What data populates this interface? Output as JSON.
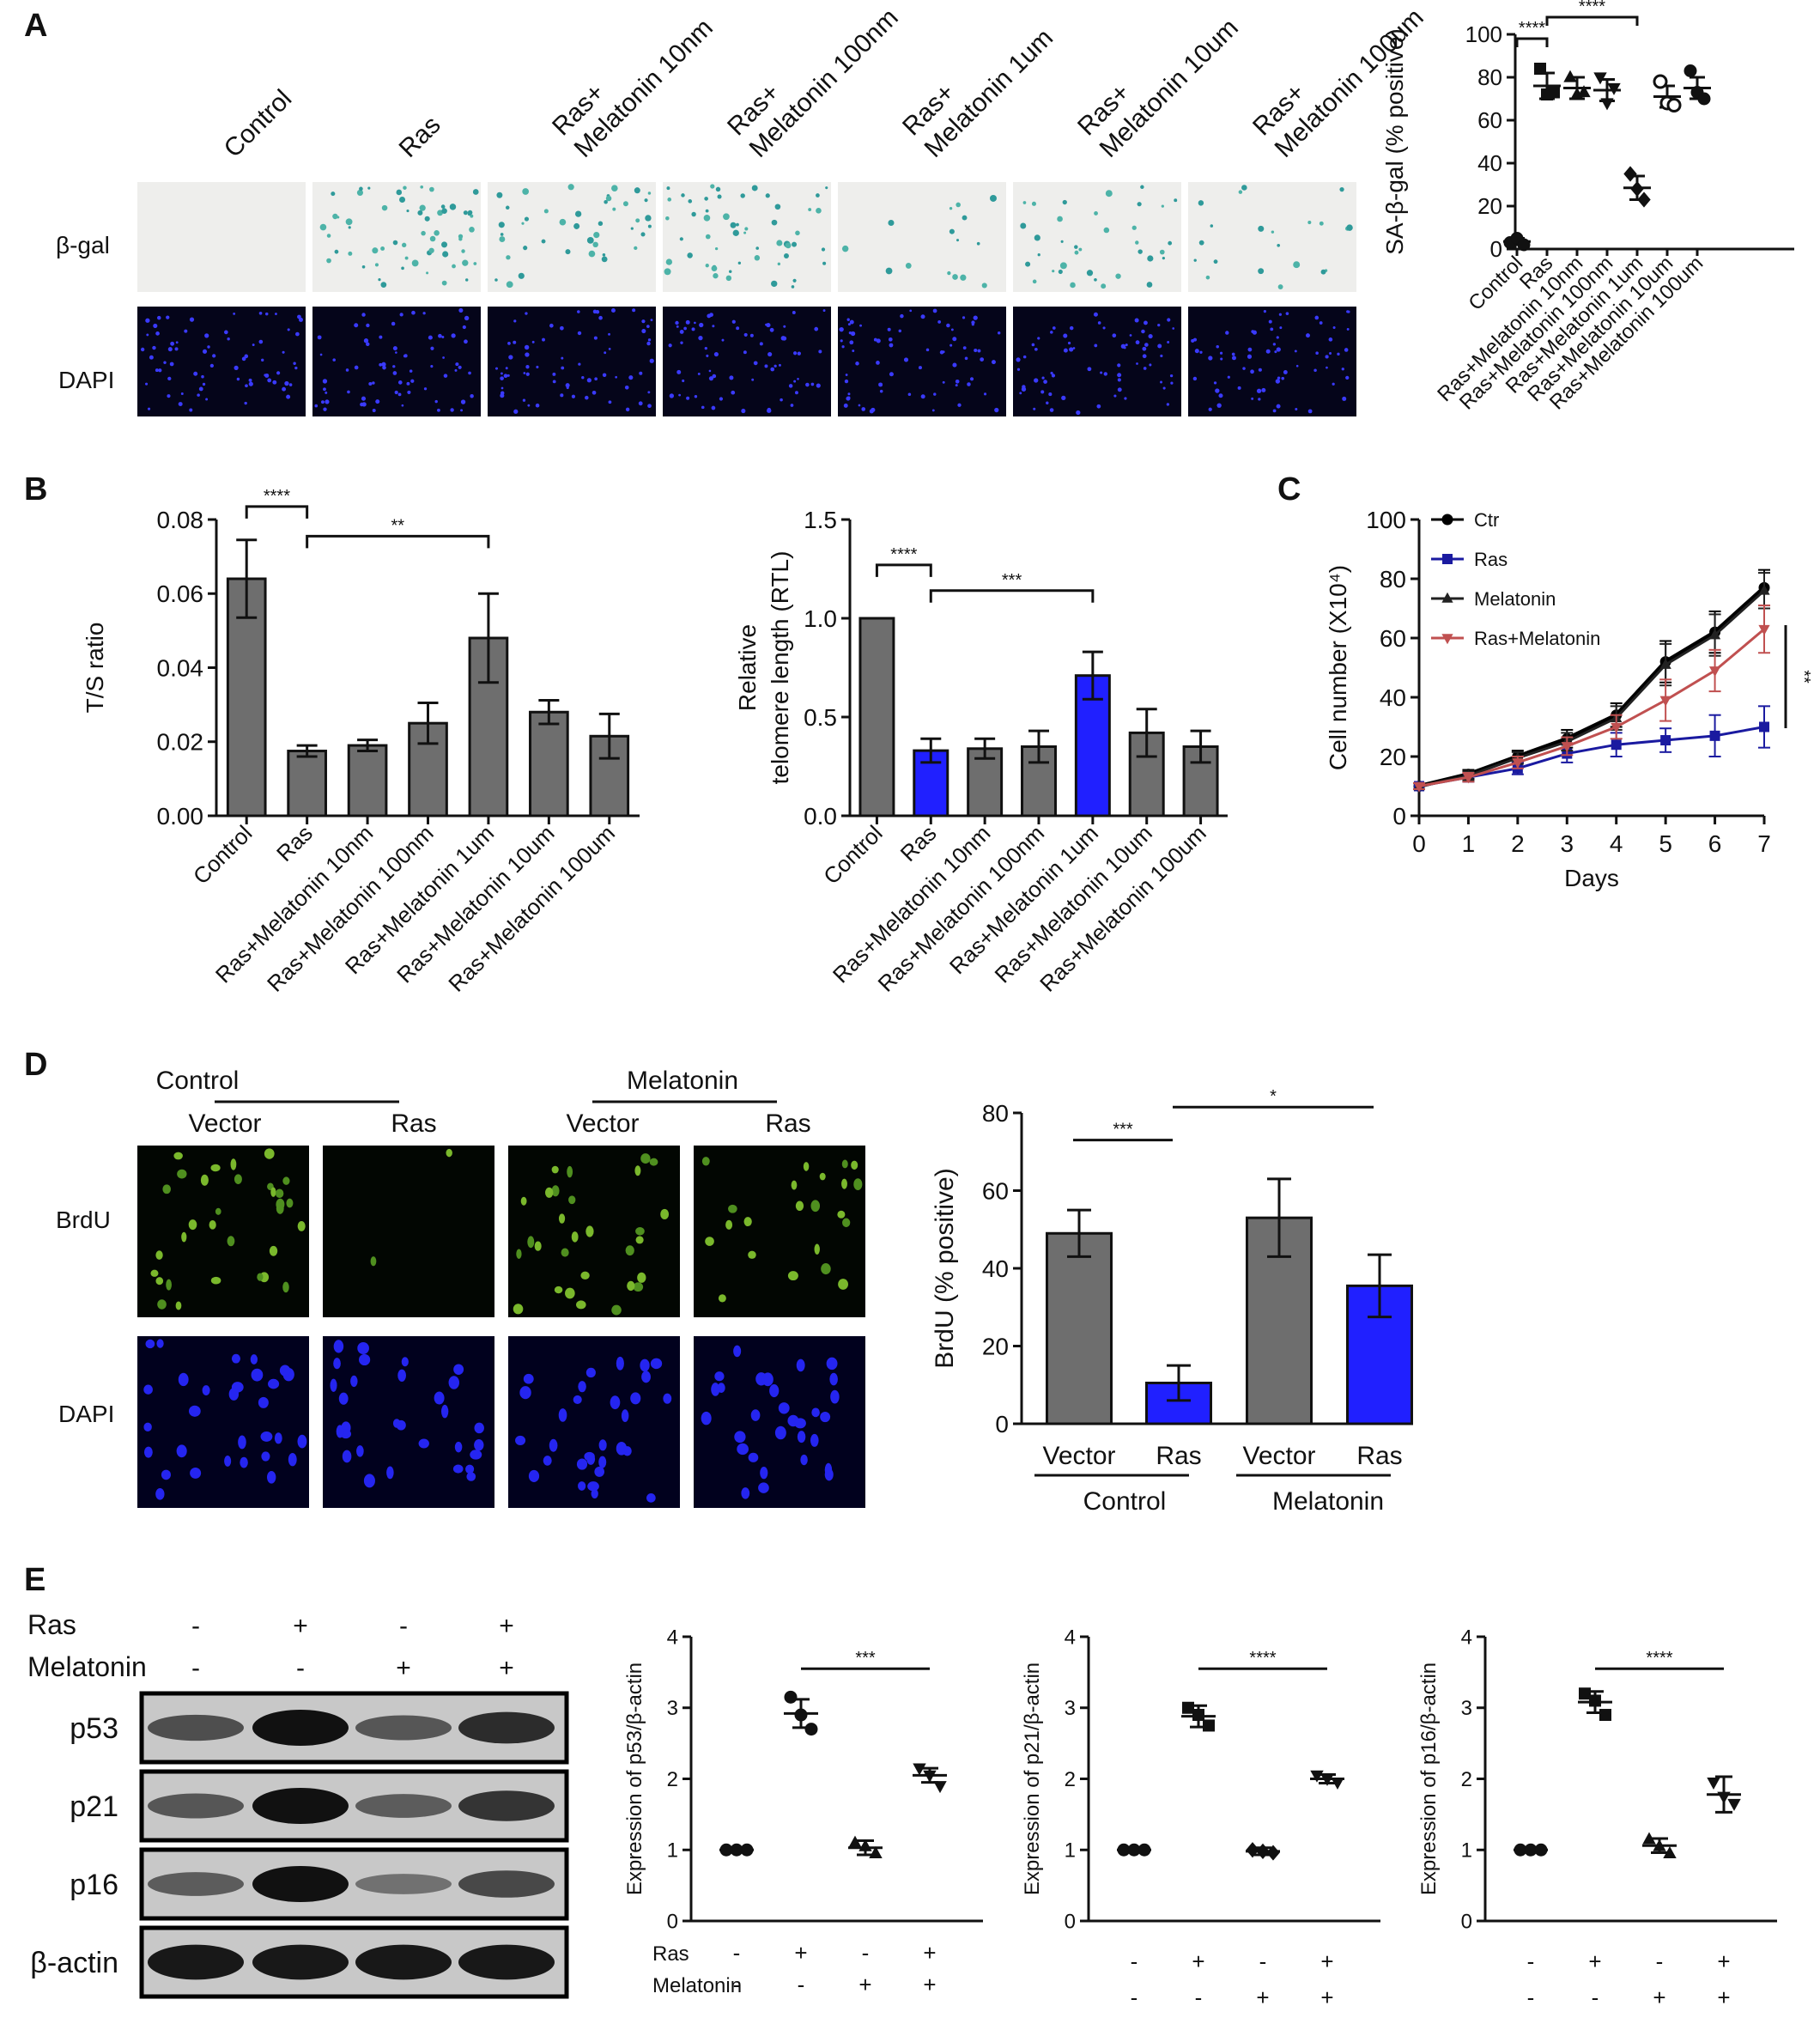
{
  "panels": [
    {
      "letter": "A"
    },
    {
      "letter": "B"
    },
    {
      "letter": "C"
    },
    {
      "letter": "D"
    },
    {
      "letter": "E"
    }
  ],
  "panelA": {
    "col_labels": [
      {
        "lines": [
          "Control"
        ]
      },
      {
        "lines": [
          "Ras"
        ]
      },
      {
        "lines": [
          "Ras+",
          "Melatonin 10nm"
        ]
      },
      {
        "lines": [
          "Ras+",
          "Melatonin 100nm"
        ]
      },
      {
        "lines": [
          "Ras+",
          "Melatonin 1um"
        ]
      },
      {
        "lines": [
          "Ras+",
          "Melatonin 10um"
        ]
      },
      {
        "lines": [
          "Ras+",
          "Melatonin 100um"
        ]
      }
    ],
    "row_labels": [
      "β-gal",
      "DAPI"
    ],
    "bgal_density": [
      0,
      1.0,
      0.7,
      0.9,
      0.25,
      0.6,
      0.35
    ]
  },
  "panelD": {
    "group_labels": [
      "Control",
      "Melatonin"
    ],
    "col_labels": [
      "Vector",
      "Ras",
      "Vector",
      "Ras"
    ],
    "row_labels": [
      "BrdU",
      "DAPI"
    ],
    "brdu_density": [
      1.0,
      0.05,
      0.9,
      0.7
    ]
  },
  "panelE_blot": {
    "treatment_rows": [
      {
        "label": "Ras",
        "signs": [
          "-",
          "+",
          "-",
          "+"
        ]
      },
      {
        "label": "Melatonin",
        "signs": [
          "-",
          "-",
          "+",
          "+"
        ]
      }
    ],
    "bands": [
      {
        "label": "p53",
        "intensity": [
          0.55,
          1.0,
          0.5,
          0.8
        ]
      },
      {
        "label": "p21",
        "intensity": [
          0.5,
          1.0,
          0.45,
          0.75
        ]
      },
      {
        "label": "p16",
        "intensity": [
          0.45,
          1.0,
          0.3,
          0.6
        ]
      },
      {
        "label": "β-actin",
        "intensity": [
          0.95,
          0.95,
          0.95,
          0.95
        ]
      }
    ]
  },
  "colors": {
    "gray_bar": "#6e6e6e",
    "blue_bar": "#2020ff",
    "ctr": "#000000",
    "ras": "#1a1aa0",
    "melatonin": "#222222",
    "ras_melatonin": "#c05050"
  },
  "chart_data": [
    {
      "id": "A",
      "type": "scatter",
      "ylabel": "SA-β-gal (% positive)",
      "categories": [
        "Control",
        "Ras",
        "Ras+Melatonin 10nm",
        "Ras+Melatonin 100nm",
        "Ras+Melatonin 1um",
        "Ras+Melatonin 10um",
        "Ras+Melatonin 100um"
      ],
      "points": [
        [
          3,
          5,
          2
        ],
        [
          84,
          72,
          73
        ],
        [
          80,
          72,
          73
        ],
        [
          80,
          68,
          75
        ],
        [
          35,
          28,
          23
        ],
        [
          78,
          68,
          67
        ],
        [
          83,
          73,
          70
        ]
      ],
      "means": [
        3.5,
        76,
        75,
        74,
        28.5,
        71,
        75
      ],
      "sd": [
        1.5,
        6,
        5,
        5,
        5.5,
        5,
        5
      ],
      "markers": [
        "circle",
        "square",
        "triangle",
        "triangle-down",
        "diamond",
        "circle-open",
        "circle"
      ],
      "yticks": [
        0,
        20,
        40,
        60,
        80,
        100
      ],
      "ylim": [
        0,
        100
      ],
      "significance": [
        {
          "from": 0,
          "to": 1,
          "label": "****",
          "level": 98
        },
        {
          "from": 1,
          "to": 4,
          "label": "****",
          "level": 108
        }
      ]
    },
    {
      "id": "B1",
      "type": "bar",
      "ylabel": "T/S ratio",
      "categories": [
        "Control",
        "Ras",
        "Ras+Melatonin 10nm",
        "Ras+Melatonin 100nm",
        "Ras+Melatonin 1um",
        "Ras+Melatonin 10um",
        "Ras+Melatonin 100um"
      ],
      "values": [
        0.064,
        0.0175,
        0.019,
        0.025,
        0.048,
        0.028,
        0.0215
      ],
      "err": [
        0.0105,
        0.0015,
        0.0015,
        0.0055,
        0.012,
        0.0032,
        0.006
      ],
      "colors": [
        "gray",
        "gray",
        "gray",
        "gray",
        "gray",
        "gray",
        "gray"
      ],
      "yticks": [
        "0.00",
        "0.02",
        "0.04",
        "0.06",
        "0.08"
      ],
      "ylim": [
        0,
        0.08
      ],
      "significance": [
        {
          "from": 0,
          "to": 1,
          "label": "****",
          "level": 0.0835
        },
        {
          "from": 1,
          "to": 4,
          "label": "**",
          "level": 0.0755
        }
      ]
    },
    {
      "id": "B2",
      "type": "bar",
      "ylabel": "Relative telomere length (RTL)",
      "ylabel_lines": [
        "Relative",
        "telomere length (RTL)"
      ],
      "categories": [
        "Control",
        "Ras",
        "Ras+Melatonin 10nm",
        "Ras+Melatonin 100nm",
        "Ras+Melatonin 1um",
        "Ras+Melatonin 10um",
        "Ras+Melatonin 100um"
      ],
      "values": [
        1.0,
        0.33,
        0.34,
        0.35,
        0.71,
        0.42,
        0.35
      ],
      "err": [
        0.0,
        0.06,
        0.05,
        0.08,
        0.12,
        0.12,
        0.08
      ],
      "colors": [
        "gray",
        "blue",
        "gray",
        "gray",
        "blue",
        "gray",
        "gray"
      ],
      "yticks": [
        "0.0",
        "0.5",
        "1.0",
        "1.5"
      ],
      "ylim": [
        0,
        1.5
      ],
      "significance": [
        {
          "from": 0,
          "to": 1,
          "label": "****",
          "level": 1.27
        },
        {
          "from": 1,
          "to": 4,
          "label": "***",
          "level": 1.14
        }
      ]
    },
    {
      "id": "C",
      "type": "line",
      "xlabel": "Days",
      "ylabel": "Cell number (X10⁴)",
      "x": [
        0,
        1,
        2,
        3,
        4,
        5,
        6,
        7
      ],
      "series": [
        {
          "name": "Ctr",
          "marker": "circle",
          "values": [
            10,
            14,
            20,
            26,
            34,
            52,
            62,
            77
          ],
          "err": [
            1,
            1.5,
            2,
            3,
            4,
            7,
            7,
            6
          ]
        },
        {
          "name": "Ras",
          "marker": "square",
          "values": [
            10,
            13,
            16,
            21,
            24,
            25.5,
            27,
            30
          ],
          "err": [
            1,
            1.5,
            2,
            3,
            4,
            4,
            7,
            7
          ]
        },
        {
          "name": "Melatonin",
          "marker": "triangle",
          "values": [
            10,
            13.5,
            19.5,
            25,
            33,
            51,
            61,
            76
          ],
          "err": [
            1,
            1.5,
            2,
            3,
            4,
            7,
            7,
            6
          ]
        },
        {
          "name": "Ras+Melatonin",
          "marker": "triangle-down",
          "values": [
            10,
            13,
            18,
            23.5,
            30,
            39,
            49,
            63
          ],
          "err": [
            1,
            1.5,
            2,
            3,
            4,
            7,
            7,
            8
          ]
        }
      ],
      "xticks": [
        0,
        1,
        2,
        3,
        4,
        5,
        6,
        7
      ],
      "yticks": [
        0,
        20,
        40,
        60,
        80,
        100
      ],
      "xlim": [
        0,
        7
      ],
      "ylim": [
        0,
        100
      ],
      "legend": "top-left",
      "significance": [
        {
          "label": "**"
        }
      ]
    },
    {
      "id": "D",
      "type": "bar",
      "ylabel": "BrdU (% positive)",
      "categories": [
        "Vector",
        "Ras",
        "Vector",
        "Ras"
      ],
      "groups": [
        "Control",
        "Melatonin"
      ],
      "values": [
        49,
        10.5,
        53,
        35.5
      ],
      "err": [
        6,
        4.5,
        10,
        8
      ],
      "colors": [
        "gray",
        "blue",
        "gray",
        "blue"
      ],
      "yticks": [
        0,
        20,
        40,
        60,
        80
      ],
      "ylim": [
        0,
        80
      ],
      "significance": [
        {
          "from": 0,
          "to": 1,
          "label": "***",
          "level": 73
        },
        {
          "from": 1,
          "to": 3,
          "label": "*",
          "level": 81.5
        }
      ]
    },
    {
      "id": "E1",
      "type": "scatter",
      "ylabel": "Expression of p53/β-actin",
      "row_labels": [
        "Ras",
        "Melatonin"
      ],
      "treatments": [
        [
          "-",
          "+",
          "-",
          "+"
        ],
        [
          "-",
          "-",
          "+",
          "+"
        ]
      ],
      "points": [
        [
          1,
          1,
          1
        ],
        [
          3.15,
          2.9,
          2.7
        ],
        [
          1.1,
          1.05,
          0.95
        ],
        [
          2.15,
          2.05,
          1.9
        ]
      ],
      "means": [
        1,
        2.92,
        1.03,
        2.05
      ],
      "sd": [
        0,
        0.2,
        0.1,
        0.1
      ],
      "markers": [
        "circle",
        "circle",
        "triangle",
        "triangle-down"
      ],
      "yticks": [
        0,
        1,
        2,
        3,
        4
      ],
      "ylim": [
        0,
        4
      ],
      "significance": [
        {
          "from": 1,
          "to": 3,
          "label": "***",
          "level": 3.55
        }
      ]
    },
    {
      "id": "E2",
      "type": "scatter",
      "ylabel": "Expression of p21/β-actin",
      "treatments": [
        [
          "-",
          "+",
          "-",
          "+"
        ],
        [
          "-",
          "-",
          "+",
          "+"
        ]
      ],
      "points": [
        [
          1,
          1,
          1
        ],
        [
          3.0,
          2.9,
          2.75
        ],
        [
          1.0,
          0.98,
          0.96
        ],
        [
          2.05,
          2.0,
          1.95
        ]
      ],
      "means": [
        1,
        2.88,
        0.98,
        2.0
      ],
      "sd": [
        0,
        0.15,
        0.05,
        0.06
      ],
      "markers": [
        "circle",
        "square",
        "diamond",
        "triangle-down"
      ],
      "yticks": [
        0,
        1,
        2,
        3,
        4
      ],
      "ylim": [
        0,
        4
      ],
      "significance": [
        {
          "from": 1,
          "to": 3,
          "label": "****",
          "level": 3.55
        }
      ]
    },
    {
      "id": "E3",
      "type": "scatter",
      "ylabel": "Expression of p16/β-actin",
      "treatments": [
        [
          "-",
          "+",
          "-",
          "+"
        ],
        [
          "-",
          "-",
          "+",
          "+"
        ]
      ],
      "points": [
        [
          1,
          1,
          1
        ],
        [
          3.2,
          3.1,
          2.9
        ],
        [
          1.15,
          1.05,
          0.95
        ],
        [
          1.95,
          1.75,
          1.65
        ]
      ],
      "means": [
        1,
        3.08,
        1.06,
        1.78
      ],
      "sd": [
        0,
        0.15,
        0.1,
        0.25
      ],
      "markers": [
        "circle",
        "square",
        "triangle",
        "triangle-down"
      ],
      "yticks": [
        0,
        1,
        2,
        3,
        4
      ],
      "ylim": [
        0,
        4
      ],
      "significance": [
        {
          "from": 1,
          "to": 3,
          "label": "****",
          "level": 3.55
        }
      ]
    }
  ]
}
